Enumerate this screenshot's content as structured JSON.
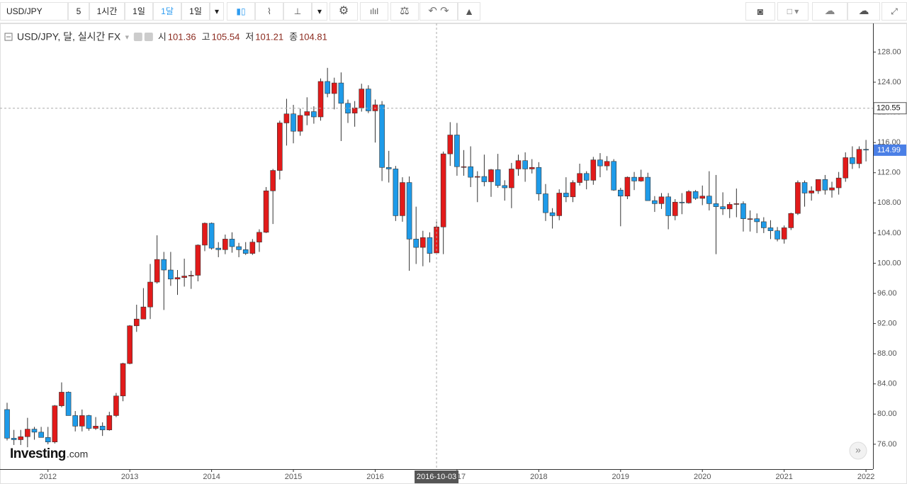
{
  "toolbar": {
    "symbol": "USD/JPY",
    "intervals": [
      "5",
      "1시간",
      "1일",
      "1달",
      "1일"
    ],
    "active_interval": 3
  },
  "chart_data": {
    "type": "candlestick",
    "title": "USD/JPY, 달, 실시간 FX",
    "ohlc_legend": {
      "labels": [
        "시",
        "고",
        "저",
        "종"
      ],
      "values": [
        101.36,
        105.54,
        101.21,
        104.81
      ]
    },
    "x": [
      "2011-07",
      "2011-08",
      "2011-09",
      "2011-10",
      "2011-11",
      "2011-12",
      "2012-01",
      "2012-02",
      "2012-03",
      "2012-04",
      "2012-05",
      "2012-06",
      "2012-07",
      "2012-08",
      "2012-09",
      "2012-10",
      "2012-11",
      "2012-12",
      "2013-01",
      "2013-02",
      "2013-03",
      "2013-04",
      "2013-05",
      "2013-06",
      "2013-07",
      "2013-08",
      "2013-09",
      "2013-10",
      "2013-11",
      "2013-12",
      "2014-01",
      "2014-02",
      "2014-03",
      "2014-04",
      "2014-05",
      "2014-06",
      "2014-07",
      "2014-08",
      "2014-09",
      "2014-10",
      "2014-11",
      "2014-12",
      "2015-01",
      "2015-02",
      "2015-03",
      "2015-04",
      "2015-05",
      "2015-06",
      "2015-07",
      "2015-08",
      "2015-09",
      "2015-10",
      "2015-11",
      "2015-12",
      "2016-01",
      "2016-02",
      "2016-03",
      "2016-04",
      "2016-05",
      "2016-06",
      "2016-07",
      "2016-08",
      "2016-09",
      "2016-10",
      "2016-11",
      "2016-12",
      "2017-01",
      "2017-02",
      "2017-03",
      "2017-04",
      "2017-05",
      "2017-06",
      "2017-07",
      "2017-08",
      "2017-09",
      "2017-10",
      "2017-11",
      "2017-12",
      "2018-01",
      "2018-02",
      "2018-03",
      "2018-04",
      "2018-05",
      "2018-06",
      "2018-07",
      "2018-08",
      "2018-09",
      "2018-10",
      "2018-11",
      "2018-12",
      "2019-01",
      "2019-02",
      "2019-03",
      "2019-04",
      "2019-05",
      "2019-06",
      "2019-07",
      "2019-08",
      "2019-09",
      "2019-10",
      "2019-11",
      "2019-12",
      "2020-01",
      "2020-02",
      "2020-03",
      "2020-04",
      "2020-05",
      "2020-06",
      "2020-07",
      "2020-08",
      "2020-09",
      "2020-10",
      "2020-11",
      "2020-12",
      "2021-01",
      "2021-02",
      "2021-03",
      "2021-04",
      "2021-05",
      "2021-06",
      "2021-07",
      "2021-08",
      "2021-09",
      "2021-10",
      "2021-11",
      "2021-12",
      "2022-01"
    ],
    "open": [
      80.6,
      76.8,
      76.6,
      77.0,
      78.0,
      77.6,
      76.9,
      76.3,
      81.1,
      82.9,
      79.8,
      78.4,
      79.8,
      78.1,
      78.4,
      77.9,
      79.8,
      82.4,
      86.7,
      91.7,
      92.6,
      94.2,
      97.5,
      100.5,
      99.1,
      97.9,
      98.1,
      98.3,
      98.4,
      102.4,
      105.3,
      102.0,
      101.8,
      103.2,
      102.2,
      101.8,
      101.3,
      102.8,
      104.1,
      109.6,
      112.3,
      118.6,
      119.8,
      117.5,
      119.6,
      120.1,
      119.4,
      124.1,
      122.5,
      123.9,
      121.2,
      119.9,
      120.6,
      123.1,
      120.2,
      121.0,
      112.7,
      112.5,
      106.3,
      110.7,
      103.2,
      102.1,
      103.4,
      101.36,
      104.81,
      114.5,
      117.0,
      112.8,
      112.8,
      111.4,
      111.5,
      110.8,
      112.4,
      110.3,
      110.0,
      112.5,
      113.6,
      112.5,
      112.7,
      109.2,
      106.7,
      106.3,
      109.3,
      108.8,
      110.7,
      111.9,
      111.0,
      113.7,
      112.9,
      113.5,
      109.7,
      108.9,
      111.4,
      110.9,
      111.4,
      108.3,
      107.9,
      108.8,
      106.3,
      108.1,
      108.0,
      109.5,
      108.6,
      108.9,
      107.9,
      107.5,
      107.2,
      107.8,
      107.9,
      105.9,
      105.9,
      105.5,
      104.7,
      104.3,
      103.2,
      104.7,
      106.6,
      110.7,
      109.3,
      109.6,
      111.1,
      109.7,
      110.0,
      111.3,
      114.0,
      113.2,
      115.1
    ],
    "high": [
      81.5,
      77.9,
      77.9,
      79.5,
      78.3,
      78.3,
      78.3,
      81.2,
      84.2,
      83.0,
      80.4,
      80.6,
      79.9,
      79.6,
      78.9,
      80.3,
      82.8,
      86.8,
      91.8,
      94.5,
      96.7,
      99.9,
      103.7,
      101.5,
      101.5,
      99.1,
      100.6,
      99.0,
      102.5,
      105.4,
      105.4,
      102.8,
      103.8,
      104.1,
      102.7,
      102.8,
      103.2,
      104.5,
      110.1,
      112.5,
      118.9,
      121.8,
      121.0,
      120.5,
      122.0,
      120.8,
      124.5,
      125.9,
      124.6,
      125.3,
      121.7,
      121.5,
      123.8,
      123.6,
      121.7,
      121.5,
      114.9,
      112.9,
      111.4,
      111.5,
      107.5,
      104.3,
      104.1,
      105.54,
      114.8,
      118.7,
      118.6,
      115.0,
      115.5,
      112.2,
      114.4,
      112.5,
      114.5,
      111.0,
      113.3,
      114.4,
      114.7,
      113.8,
      113.4,
      110.5,
      107.3,
      109.8,
      111.4,
      111.0,
      113.2,
      112.2,
      114.1,
      114.6,
      114.2,
      113.8,
      110.0,
      111.5,
      112.1,
      112.4,
      112.0,
      108.9,
      109.3,
      109.3,
      108.5,
      109.3,
      109.7,
      109.7,
      110.3,
      112.2,
      111.7,
      109.4,
      108.1,
      109.9,
      108.2,
      107.0,
      106.6,
      106.1,
      105.7,
      104.8,
      105.0,
      106.7,
      110.97,
      110.97,
      110.2,
      111.1,
      111.7,
      110.8,
      112.1,
      114.7,
      115.5,
      115.5,
      116.35
    ],
    "low": [
      76.5,
      75.9,
      75.9,
      75.6,
      76.6,
      76.9,
      76.0,
      76.1,
      80.9,
      79.8,
      77.7,
      77.7,
      77.8,
      77.9,
      77.1,
      77.8,
      79.6,
      81.7,
      86.6,
      90.9,
      92.6,
      92.6,
      97.3,
      93.8,
      97.0,
      95.8,
      96.9,
      96.6,
      97.6,
      101.6,
      101.8,
      100.8,
      101.2,
      101.4,
      100.8,
      101.1,
      101.1,
      101.5,
      104.0,
      105.2,
      111.1,
      115.6,
      115.9,
      116.9,
      118.3,
      118.5,
      118.9,
      122.0,
      120.4,
      116.2,
      118.6,
      118.1,
      120.1,
      119.9,
      116.0,
      110.9,
      110.7,
      105.6,
      105.5,
      99.0,
      99.9,
      99.6,
      100.1,
      101.21,
      101.2,
      112.9,
      111.6,
      111.6,
      110.1,
      108.1,
      110.2,
      108.8,
      110.0,
      108.3,
      107.3,
      111.6,
      110.8,
      111.9,
      108.3,
      105.6,
      104.6,
      105.7,
      108.1,
      108.1,
      110.3,
      109.8,
      110.4,
      111.4,
      112.3,
      109.6,
      104.9,
      108.5,
      109.7,
      110.8,
      108.3,
      106.8,
      107.2,
      104.5,
      105.7,
      106.5,
      107.9,
      108.4,
      107.7,
      107.0,
      101.2,
      106.4,
      105.99,
      106.1,
      104.2,
      104.2,
      104.0,
      104.0,
      103.2,
      102.9,
      102.6,
      104.4,
      106.4,
      107.5,
      108.3,
      109.2,
      109.1,
      108.7,
      109.1,
      110.8,
      112.5,
      112.6,
      113.5
    ],
    "close": [
      76.8,
      76.6,
      77.0,
      78.0,
      77.6,
      76.9,
      76.3,
      81.1,
      82.9,
      79.8,
      78.4,
      79.8,
      78.1,
      78.4,
      77.9,
      79.8,
      82.4,
      86.7,
      91.7,
      92.6,
      94.2,
      97.5,
      100.5,
      99.1,
      97.9,
      98.1,
      98.3,
      98.4,
      102.4,
      105.3,
      102.0,
      101.8,
      103.2,
      102.2,
      101.8,
      101.3,
      102.8,
      104.1,
      109.6,
      112.3,
      118.6,
      119.8,
      117.5,
      119.6,
      120.1,
      119.4,
      124.1,
      122.5,
      123.9,
      121.2,
      119.9,
      120.6,
      123.1,
      120.2,
      121.0,
      112.7,
      112.5,
      106.3,
      110.7,
      103.2,
      102.1,
      103.4,
      101.3,
      104.81,
      114.5,
      117.0,
      112.8,
      112.8,
      111.4,
      111.5,
      110.8,
      112.4,
      110.3,
      110.0,
      112.5,
      113.6,
      112.5,
      112.7,
      109.2,
      106.7,
      106.3,
      109.3,
      108.8,
      110.7,
      111.9,
      111.0,
      113.7,
      112.9,
      113.5,
      109.7,
      108.9,
      111.4,
      110.9,
      111.4,
      108.3,
      107.9,
      108.8,
      106.3,
      108.1,
      108.0,
      109.5,
      108.6,
      108.9,
      107.9,
      107.5,
      107.2,
      107.8,
      107.9,
      105.9,
      105.9,
      105.5,
      104.7,
      104.3,
      103.2,
      104.7,
      106.6,
      110.7,
      109.3,
      109.6,
      111.1,
      109.7,
      110.0,
      111.3,
      114.0,
      113.2,
      115.1,
      115.0
    ],
    "up_color": "#e21a1a",
    "down_color": "#1e9be9",
    "ylim": [
      72.7,
      131.8
    ],
    "yticks": [
      {
        "value": 76,
        "label": "76.00"
      },
      {
        "value": 80,
        "label": "80.00"
      },
      {
        "value": 84,
        "label": "84.00"
      },
      {
        "value": 88,
        "label": "88.00"
      },
      {
        "value": 92,
        "label": "92.00"
      },
      {
        "value": 96,
        "label": "96.00"
      },
      {
        "value": 100,
        "label": "100.00"
      },
      {
        "value": 104,
        "label": "104.00"
      },
      {
        "value": 108,
        "label": "108.00"
      },
      {
        "value": 112,
        "label": "112.00"
      },
      {
        "value": 116,
        "label": "116.00"
      },
      {
        "value": 120,
        "label": "120.00"
      },
      {
        "value": 124,
        "label": "124.00"
      },
      {
        "value": 128,
        "label": "128.00"
      }
    ],
    "xticks": [
      {
        "value": "2012-01",
        "label": "2012"
      },
      {
        "value": "2013-01",
        "label": "2013"
      },
      {
        "value": "2014-01",
        "label": "2014"
      },
      {
        "value": "2015-01",
        "label": "2015"
      },
      {
        "value": "2016-01",
        "label": "2016"
      },
      {
        "value": "2017-01",
        "label": "2017"
      },
      {
        "value": "2018-01",
        "label": "2018"
      },
      {
        "value": "2019-01",
        "label": "2019"
      },
      {
        "value": "2020-01",
        "label": "2020"
      },
      {
        "value": "2021-01",
        "label": "2021"
      },
      {
        "value": "2022-01",
        "label": "2022"
      }
    ],
    "crosshair": {
      "x": {
        "value": "2016-10",
        "label": "2016-10-03"
      },
      "y": 120.55
    },
    "last_price": 114.99,
    "logo": {
      "name": "Investing",
      "suffix": ".com"
    }
  }
}
